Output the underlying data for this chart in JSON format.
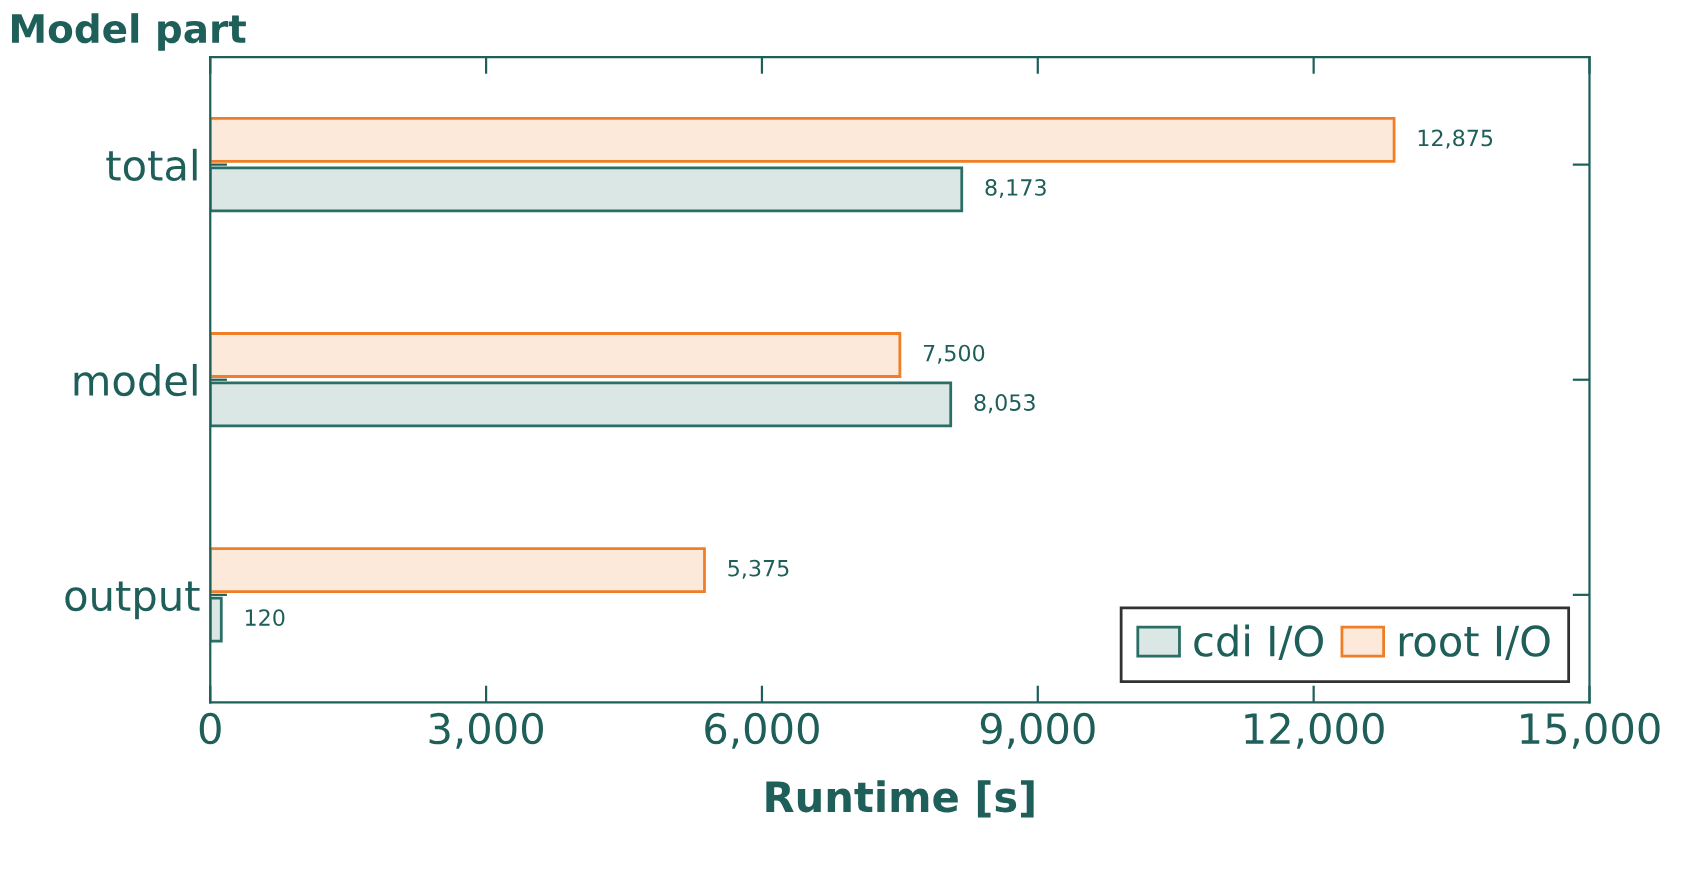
{
  "chart_data": {
    "type": "bar",
    "orientation": "horizontal",
    "ylabel": "Model part",
    "xlabel": "Runtime [s]",
    "categories": [
      "total",
      "model",
      "output"
    ],
    "series": [
      {
        "name": "cdi I/O",
        "color": "#2b6e66",
        "values": [
          8173,
          8053,
          120
        ],
        "value_labels": [
          "8,173",
          "8,053",
          "120"
        ]
      },
      {
        "name": "root I/O",
        "color": "#f07e26",
        "values": [
          12875,
          7500,
          5375
        ],
        "value_labels": [
          "12,875",
          "7,500",
          "5,375"
        ]
      }
    ],
    "xlim": [
      0,
      15000
    ],
    "xticks": [
      0,
      {
        "value": 3000,
        "label": "3,000"
      },
      {
        "value": 6000,
        "label": "6,000"
      },
      {
        "value": 9000,
        "label": "9,000"
      },
      {
        "value": 12000,
        "label": "12,000"
      },
      {
        "value": 15000,
        "label": "15,000"
      }
    ],
    "grid": false,
    "legend": "bottom right"
  }
}
